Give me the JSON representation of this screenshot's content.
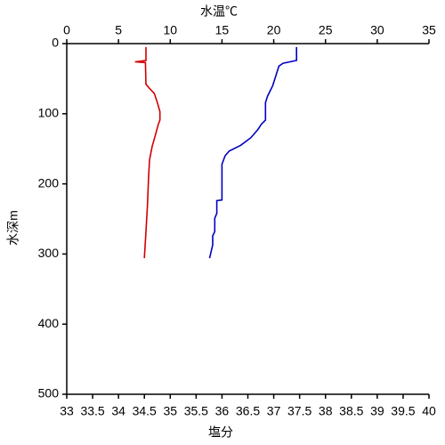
{
  "chart_data": {
    "type": "line",
    "x_label": "塩分",
    "x2_label": "水温℃",
    "y_label": "水深m",
    "xlim": [
      33,
      40
    ],
    "xticks": [
      33,
      33.5,
      34,
      34.5,
      35,
      35.5,
      36,
      36.5,
      37,
      37.5,
      38,
      38.5,
      39,
      39.5,
      40
    ],
    "x2lim": [
      0,
      35
    ],
    "x2ticks": [
      0,
      5,
      10,
      15,
      20,
      25,
      30,
      35
    ],
    "ylim": [
      0,
      500
    ],
    "yticks": [
      0,
      100,
      200,
      300,
      400,
      500
    ],
    "y_inverted": true,
    "x_label_color": "#c00000",
    "x2_label_color": "#0000c0",
    "series": [
      {
        "color": "#d00000",
        "axis": "x",
        "x": [
          34.53,
          34.53,
          34.32,
          34.52,
          34.53,
          34.6,
          34.69,
          34.75,
          34.8,
          34.8,
          34.77,
          34.7,
          34.65,
          34.6,
          34.58,
          34.56,
          34.53,
          34.5
        ],
        "y": [
          5,
          24,
          26,
          27,
          58,
          64,
          71,
          84,
          97,
          109,
          115,
          134,
          147,
          166,
          192,
          230,
          268,
          306
        ]
      },
      {
        "color": "#0000c0",
        "axis": "x2",
        "x": [
          22.2,
          22.2,
          20.9,
          20.5,
          19.9,
          19.4,
          19.2,
          19.2,
          18.8,
          18.5,
          17.8,
          16.8,
          15.7,
          15.3,
          15.0,
          15.0,
          14.5,
          14.5,
          14.3,
          14.3,
          14.1,
          14.1,
          13.8
        ],
        "y": [
          5,
          24,
          28,
          32,
          60,
          75,
          84,
          109,
          115,
          122,
          134,
          145,
          153,
          160,
          172,
          223,
          224,
          242,
          249,
          268,
          274,
          287,
          306
        ]
      }
    ]
  }
}
